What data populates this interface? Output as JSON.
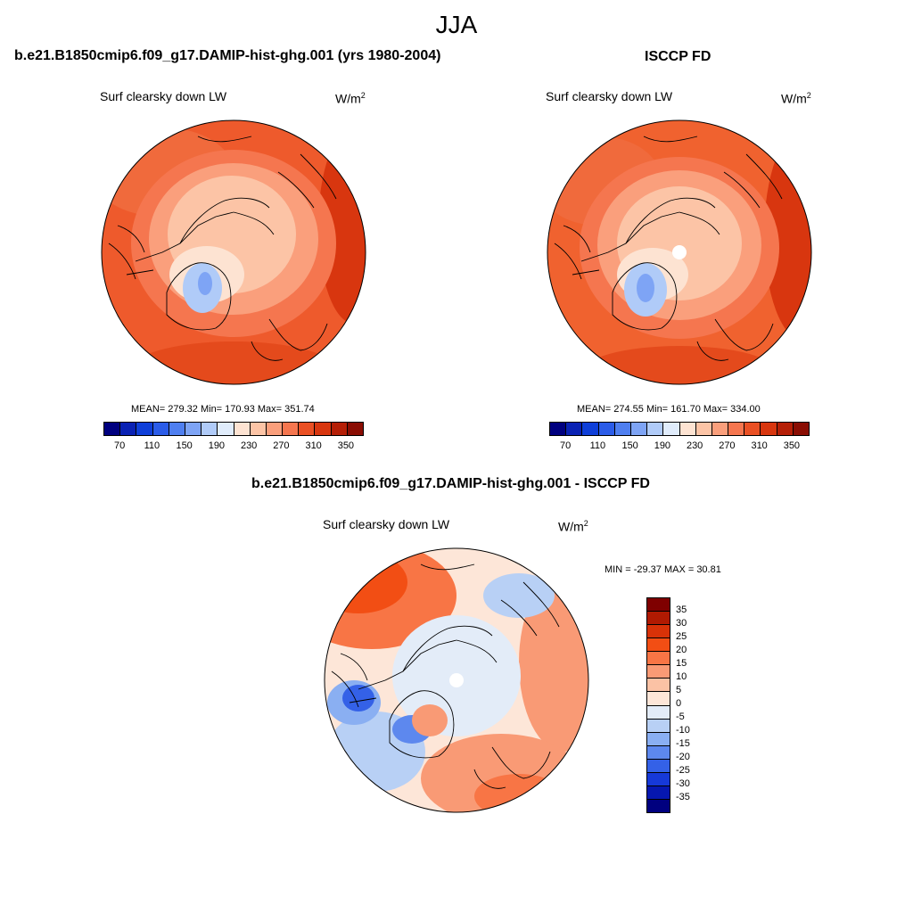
{
  "season": "JJA",
  "chart_data": [
    {
      "type": "heatmap",
      "projection": "north polar stereographic",
      "title": "b.e21.B1850cmip6.f09_g17.DAMIP-hist-ghg.001 (yrs 1980-2004)",
      "variable": "Surf clearsky down LW",
      "units_base": "W/m",
      "units_exp": "2",
      "stats": "MEAN= 279.32  Min= 170.93  Max= 351.74",
      "mean": 279.32,
      "min": 170.93,
      "max": 351.74,
      "colorbar_orientation": "horizontal",
      "colorbar_levels": [
        70,
        90,
        110,
        130,
        150,
        170,
        190,
        210,
        230,
        250,
        270,
        290,
        310,
        330,
        350
      ],
      "colorbar_tick_labels": [
        "70",
        "110",
        "150",
        "190",
        "230",
        "270",
        "310",
        "350"
      ],
      "colorbar_colors": [
        "#00007f",
        "#0a22b4",
        "#0f3fd9",
        "#2b5ce8",
        "#4f7ff0",
        "#7ea4f5",
        "#b0cbf8",
        "#e0ecfb",
        "#fde3d2",
        "#fcc4a6",
        "#fa9f7c",
        "#f5764f",
        "#ea5024",
        "#d8360f",
        "#b51f07",
        "#8a0d03"
      ]
    },
    {
      "type": "heatmap",
      "projection": "north polar stereographic",
      "title": "ISCCP FD",
      "variable": "Surf clearsky down LW",
      "units_base": "W/m",
      "units_exp": "2",
      "stats": "MEAN= 274.55  Min= 161.70  Max= 334.00",
      "mean": 274.55,
      "min": 161.7,
      "max": 334.0,
      "colorbar_orientation": "horizontal",
      "colorbar_levels": [
        70,
        90,
        110,
        130,
        150,
        170,
        190,
        210,
        230,
        250,
        270,
        290,
        310,
        330,
        350
      ],
      "colorbar_tick_labels": [
        "70",
        "110",
        "150",
        "190",
        "230",
        "270",
        "310",
        "350"
      ],
      "colorbar_colors": [
        "#00007f",
        "#0a22b4",
        "#0f3fd9",
        "#2b5ce8",
        "#4f7ff0",
        "#7ea4f5",
        "#b0cbf8",
        "#e0ecfb",
        "#fde3d2",
        "#fcc4a6",
        "#fa9f7c",
        "#f5764f",
        "#ea5024",
        "#d8360f",
        "#b51f07",
        "#8a0d03"
      ]
    },
    {
      "type": "heatmap",
      "projection": "north polar stereographic",
      "title": "b.e21.B1850cmip6.f09_g17.DAMIP-hist-ghg.001 - ISCCP FD",
      "variable": "Surf clearsky down LW",
      "units_base": "W/m",
      "units_exp": "2",
      "stats": "MIN = -29.37 MAX =  30.81",
      "min": -29.37,
      "max": 30.81,
      "colorbar_orientation": "vertical",
      "colorbar_tick_labels": [
        "35",
        "30",
        "25",
        "20",
        "15",
        "10",
        "5",
        "0",
        "-5",
        "-10",
        "-15",
        "-20",
        "-25",
        "-30",
        "-35"
      ],
      "colorbar_colors": [
        "#7f0000",
        "#b01a02",
        "#d83208",
        "#f24e14",
        "#f87545",
        "#f99a75",
        "#fbc2a5",
        "#fde6d8",
        "#e3ecf8",
        "#b8d0f5",
        "#8aaff2",
        "#5d88ee",
        "#3461e7",
        "#1639d8",
        "#0617b0",
        "#00007f"
      ]
    }
  ]
}
